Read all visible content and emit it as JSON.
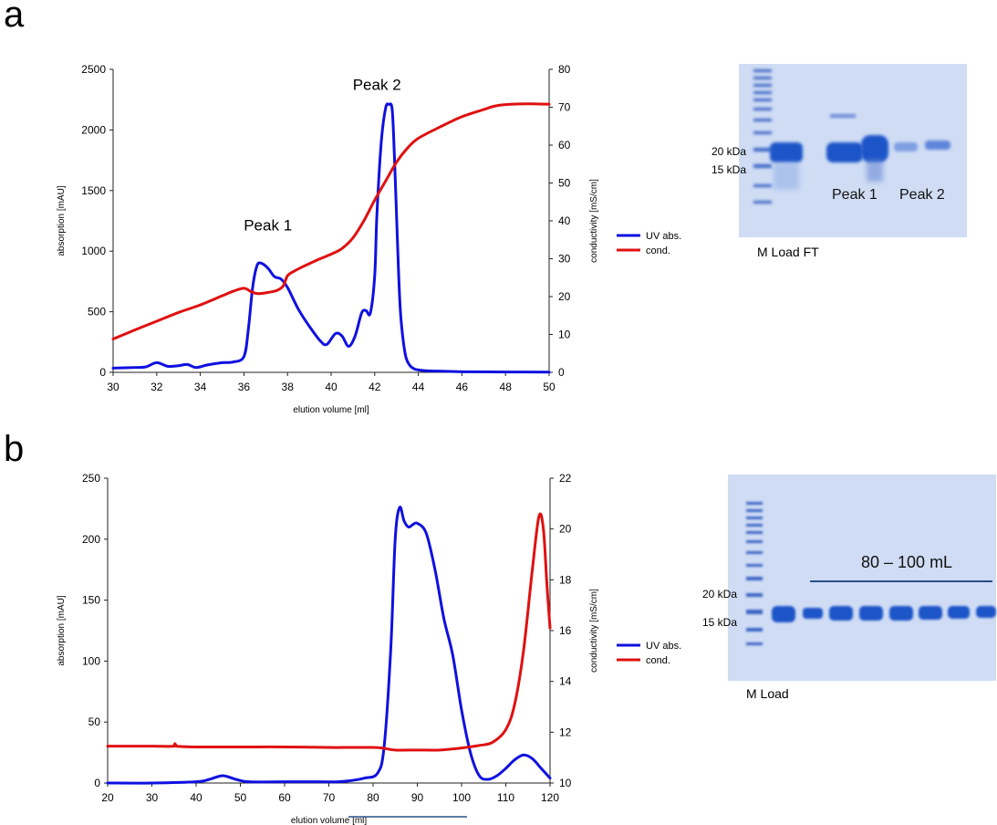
{
  "panels": [
    {
      "letter": "a"
    },
    {
      "letter": "b"
    }
  ],
  "chart_data": [
    {
      "type": "line",
      "xlabel": "elution volume [ml]",
      "ylabel": "absorption [mAU]",
      "y2label": "conductivity [mS/cm]",
      "xlim": [
        30,
        50
      ],
      "ylim": [
        0,
        2500
      ],
      "y2lim": [
        0,
        80
      ],
      "x_ticks": [
        30,
        32,
        34,
        36,
        38,
        40,
        42,
        44,
        46,
        48,
        50
      ],
      "y_ticks": [
        0,
        500,
        1000,
        1500,
        2000,
        2500
      ],
      "y2_ticks": [
        0,
        10,
        20,
        30,
        40,
        50,
        60,
        70,
        80
      ],
      "grid": false,
      "legend_position": "right",
      "annotations": [
        {
          "text": "Peak 1",
          "x": 37.1,
          "y": 1170
        },
        {
          "text": "Peak 2",
          "x": 42.1,
          "y": 2330
        }
      ],
      "series": [
        {
          "name": "UV abs.",
          "color": "#1010e0",
          "axis": "left",
          "x": [
            30,
            31,
            31.5,
            32,
            32.5,
            33,
            33.4,
            33.8,
            34.3,
            35,
            35.5,
            36,
            36.2,
            36.4,
            36.6,
            36.8,
            37.1,
            37.4,
            37.7,
            38,
            38.5,
            39,
            39.5,
            39.8,
            40.2,
            40.5,
            40.8,
            41.1,
            41.4,
            41.6,
            41.8,
            42,
            42.1,
            42.3,
            42.5,
            42.65,
            42.8,
            42.9,
            43,
            43.1,
            43.2,
            43.4,
            43.6,
            43.8,
            44,
            44.5,
            45,
            46,
            48,
            50
          ],
          "values": [
            35,
            40,
            45,
            80,
            50,
            55,
            65,
            40,
            60,
            80,
            85,
            130,
            350,
            700,
            880,
            900,
            860,
            790,
            770,
            700,
            520,
            380,
            260,
            230,
            320,
            300,
            215,
            300,
            490,
            510,
            490,
            800,
            1300,
            1900,
            2180,
            2210,
            2170,
            1800,
            1300,
            800,
            450,
            150,
            60,
            30,
            20,
            12,
            10,
            5,
            3,
            2
          ]
        },
        {
          "name": "cond.",
          "color": "#e01010",
          "axis": "right",
          "x": [
            30,
            31,
            32,
            33,
            34,
            35,
            35.5,
            36,
            36.3,
            36.6,
            37,
            37.5,
            37.8,
            38,
            38.3,
            38.7,
            39,
            39.5,
            40,
            40.5,
            41,
            41.5,
            42,
            42.5,
            43,
            43.5,
            44,
            45,
            46,
            47,
            47.5,
            48,
            49,
            50
          ],
          "values": [
            8.8,
            11.2,
            13.5,
            15.8,
            17.8,
            20.2,
            21.4,
            22.2,
            21.4,
            20.8,
            21,
            21.6,
            22.8,
            25.5,
            26.7,
            27.9,
            28.7,
            30,
            31.2,
            32.7,
            35.5,
            40,
            45.5,
            50.5,
            55.5,
            59.2,
            61.8,
            64.8,
            67.5,
            69.4,
            70.3,
            70.7,
            70.9,
            70.8
          ]
        }
      ]
    },
    {
      "type": "line",
      "xlabel": "elution volume [ml]",
      "ylabel": "absorption [mAU]",
      "y2label": "conductivity [mS/cm]",
      "xlim": [
        20,
        120
      ],
      "ylim": [
        0,
        250
      ],
      "y2lim": [
        10,
        22
      ],
      "x_ticks": [
        20,
        30,
        40,
        50,
        60,
        70,
        80,
        90,
        100,
        110,
        120
      ],
      "y_ticks": [
        0,
        50,
        100,
        150,
        200,
        250
      ],
      "y2_ticks": [
        10,
        12,
        14,
        16,
        18,
        20,
        22
      ],
      "grid": false,
      "legend_position": "right",
      "series": [
        {
          "name": "UV abs.",
          "color": "#1010e0",
          "axis": "left",
          "x": [
            20,
            30,
            40,
            43,
            46,
            49,
            52,
            60,
            68,
            72,
            75,
            78,
            81,
            82.5,
            84,
            85,
            86,
            87,
            88,
            89,
            90,
            92,
            94,
            96,
            98,
            100,
            102,
            104,
            106,
            108,
            110,
            112,
            114,
            116,
            118,
            120
          ],
          "values": [
            0,
            0,
            1,
            3,
            6,
            3,
            1,
            1,
            1,
            1,
            2,
            4,
            8,
            30,
            110,
            200,
            226,
            215,
            210,
            212,
            213,
            205,
            175,
            135,
            105,
            60,
            25,
            6,
            3,
            6,
            12,
            19,
            23,
            20,
            12,
            4
          ]
        },
        {
          "name": "cond.",
          "color": "#e01010",
          "axis": "right",
          "x": [
            20,
            30,
            35,
            35.2,
            35.5,
            40,
            50,
            60,
            70,
            75,
            80,
            82,
            85,
            90,
            95,
            100,
            104,
            107,
            110,
            112,
            114,
            116,
            117.5,
            118.5,
            119.3,
            120
          ],
          "values": [
            11.45,
            11.45,
            11.45,
            11.55,
            11.45,
            11.42,
            11.42,
            11.42,
            11.4,
            11.4,
            11.4,
            11.38,
            11.3,
            11.3,
            11.3,
            11.38,
            11.48,
            11.6,
            12.1,
            13.1,
            15.2,
            18.4,
            20.5,
            20.0,
            17.8,
            16.1
          ]
        }
      ]
    }
  ],
  "gels": [
    {
      "band_labels": [
        "20 kDa",
        "15 kDa"
      ],
      "lane_labels": [
        "Peak 1",
        "Peak 2"
      ],
      "bottom_label": "M Load FT"
    },
    {
      "band_labels": [
        "20 kDa",
        "15 kDa"
      ],
      "range_label": "80 – 100 mL",
      "bottom_label": "M  Load"
    }
  ],
  "colors": {
    "uv": "#1010e0",
    "cond": "#e01010",
    "gel_bg": "#cfdcf4",
    "band": "#1f55c8",
    "range_bar": "#2b4f86"
  }
}
